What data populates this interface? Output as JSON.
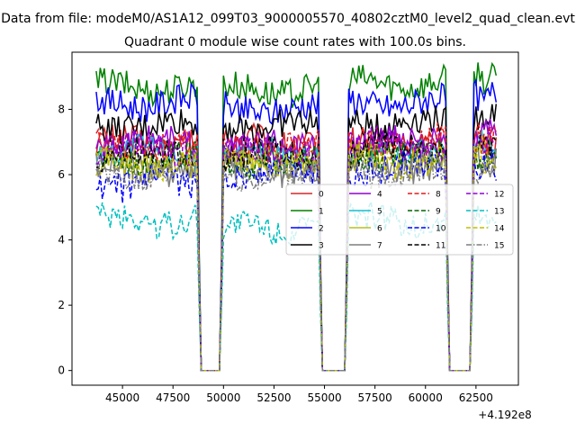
{
  "figure": {
    "suptitle": "Data from file: modeM0/AS1A12_099T03_9000005570_40802cztM0_level2_quad_clean.evt"
  },
  "chart_data": {
    "type": "line",
    "title": "Quadrant 0 module wise count rates with 100.0s bins.",
    "xlabel": "",
    "ylabel": "",
    "x_offset_label": "+4.192e8",
    "xlim": [
      42500,
      64600
    ],
    "ylim": [
      -0.45,
      9.75
    ],
    "x_ticks": [
      45000,
      47500,
      50000,
      52500,
      55000,
      57500,
      60000,
      62500
    ],
    "x_tick_labels": [
      "45000",
      "47500",
      "50000",
      "52500",
      "55000",
      "57500",
      "60000",
      "62500"
    ],
    "y_ticks": [
      0,
      2,
      4,
      6,
      8
    ],
    "y_tick_labels": [
      "0",
      "2",
      "4",
      "6",
      "8"
    ],
    "grid": false,
    "legend_position": "center-right",
    "legend_columns": 4,
    "x_segments": [
      [
        43700,
        48700
      ],
      [
        50000,
        54700
      ],
      [
        56200,
        61000
      ],
      [
        62400,
        63500
      ]
    ],
    "series": [
      {
        "name": "0",
        "color": "#d62728",
        "dash": "solid",
        "segment_levels": [
          7.0,
          7.0,
          7.0,
          7.0
        ]
      },
      {
        "name": "1",
        "color": "#008000",
        "dash": "solid",
        "segment_levels": [
          8.7,
          8.6,
          8.8,
          9.0
        ]
      },
      {
        "name": "2",
        "color": "#0000ff",
        "dash": "solid",
        "segment_levels": [
          8.2,
          8.0,
          8.2,
          8.4
        ]
      },
      {
        "name": "3",
        "color": "#000000",
        "dash": "solid",
        "segment_levels": [
          7.5,
          7.5,
          7.6,
          7.8
        ]
      },
      {
        "name": "4",
        "color": "#9400d3",
        "dash": "solid",
        "segment_levels": [
          7.0,
          6.9,
          7.0,
          7.2
        ]
      },
      {
        "name": "5",
        "color": "#17becf",
        "dash": "solid",
        "segment_levels": [
          6.7,
          6.6,
          6.7,
          6.8
        ]
      },
      {
        "name": "6",
        "color": "#bcbd22",
        "dash": "solid",
        "segment_levels": [
          6.4,
          6.4,
          6.5,
          6.6
        ]
      },
      {
        "name": "7",
        "color": "#7f7f7f",
        "dash": "solid",
        "segment_levels": [
          6.2,
          6.1,
          6.3,
          6.4
        ]
      },
      {
        "name": "8",
        "color": "#e41a1c",
        "dash": "dashed",
        "segment_levels": [
          6.9,
          6.9,
          7.0,
          7.1
        ]
      },
      {
        "name": "9",
        "color": "#006400",
        "dash": "dashed",
        "segment_levels": [
          6.5,
          6.4,
          6.6,
          6.6
        ]
      },
      {
        "name": "10",
        "color": "#0000ff",
        "dash": "dashed",
        "segment_levels": [
          5.7,
          6.1,
          6.2,
          6.3
        ]
      },
      {
        "name": "11",
        "color": "#000000",
        "dash": "dashed",
        "segment_levels": [
          6.6,
          6.6,
          6.8,
          6.9
        ]
      },
      {
        "name": "12",
        "color": "#9400d3",
        "dash": "dashed",
        "segment_levels": [
          6.8,
          6.7,
          6.9,
          7.0
        ]
      },
      {
        "name": "13",
        "color": "#00bfbf",
        "dash": "dashed",
        "segment_levels": [
          4.6,
          4.4,
          4.6,
          4.7
        ]
      },
      {
        "name": "14",
        "color": "#bfbf00",
        "dash": "dashed",
        "segment_levels": [
          6.3,
          6.3,
          6.4,
          6.5
        ]
      },
      {
        "name": "15",
        "color": "#7f7f7f",
        "dash": "dashdot",
        "segment_levels": [
          6.0,
          6.0,
          6.1,
          6.2
        ]
      }
    ]
  }
}
